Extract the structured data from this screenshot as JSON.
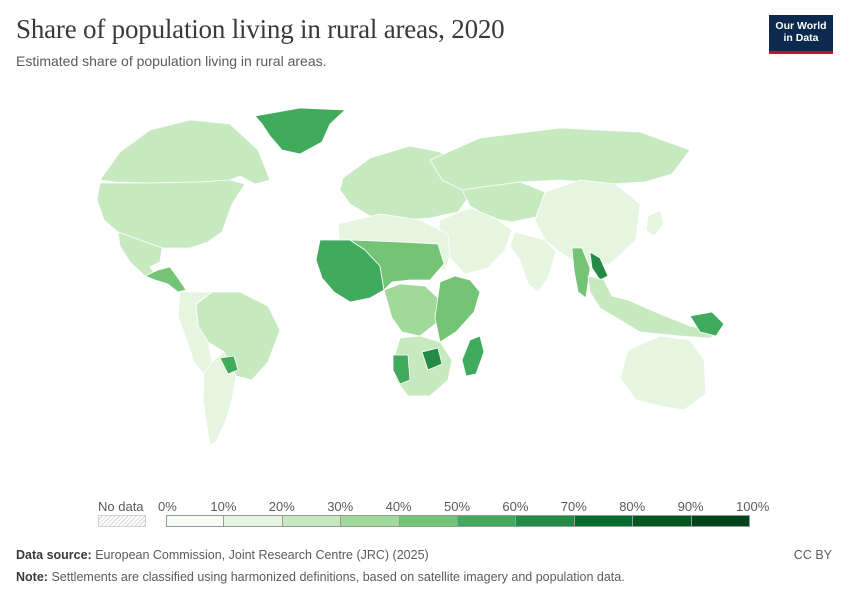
{
  "title": "Share of population living in rural areas, 2020",
  "subtitle": "Estimated share of population living in rural areas.",
  "logo": {
    "line1": "Our World",
    "line2": "in Data"
  },
  "legend": {
    "no_data_label": "No data",
    "ticks": [
      "0%",
      "10%",
      "20%",
      "30%",
      "40%",
      "50%",
      "60%",
      "70%",
      "80%",
      "90%",
      "100%"
    ],
    "colors": [
      "#f7fcf5",
      "#e5f5e0",
      "#c7e9c0",
      "#a1d99b",
      "#74c476",
      "#41ab5d",
      "#238b45",
      "#006d2c",
      "#00571f",
      "#00441b"
    ]
  },
  "footer": {
    "source_label": "Data source:",
    "source_text": "European Commission, Joint Research Centre (JRC) (2025)",
    "note_label": "Note:",
    "note_text": "Settlements are classified using harmonized definitions, based on satellite imagery and population data.",
    "license": "CC BY"
  },
  "chart_data": {
    "type": "choropleth",
    "title": "Share of population living in rural areas, 2020",
    "unit": "%",
    "bins": [
      0,
      10,
      20,
      30,
      40,
      50,
      60,
      70,
      80,
      90,
      100
    ],
    "regions": [
      {
        "name": "Greenland",
        "bin": 5
      },
      {
        "name": "Canada",
        "bin": 2
      },
      {
        "name": "United States",
        "bin": 2
      },
      {
        "name": "Mexico",
        "bin": 2
      },
      {
        "name": "Central America",
        "bin": 4
      },
      {
        "name": "Brazil",
        "bin": 2
      },
      {
        "name": "Andean South America",
        "bin": 1
      },
      {
        "name": "Argentina",
        "bin": 1
      },
      {
        "name": "Paraguay",
        "bin": 5
      },
      {
        "name": "Europe",
        "bin": 2
      },
      {
        "name": "Russia",
        "bin": 2
      },
      {
        "name": "Central Asia",
        "bin": 2
      },
      {
        "name": "China",
        "bin": 1
      },
      {
        "name": "India",
        "bin": 1
      },
      {
        "name": "Middle East",
        "bin": 1
      },
      {
        "name": "North Africa",
        "bin": 1
      },
      {
        "name": "West Africa",
        "bin": 5
      },
      {
        "name": "Sahel",
        "bin": 4
      },
      {
        "name": "Central Africa",
        "bin": 3
      },
      {
        "name": "East Africa",
        "bin": 4
      },
      {
        "name": "Southern Africa",
        "bin": 2
      },
      {
        "name": "Namibia",
        "bin": 5
      },
      {
        "name": "Zimbabwe",
        "bin": 6
      },
      {
        "name": "Madagascar",
        "bin": 5
      },
      {
        "name": "Myanmar",
        "bin": 4
      },
      {
        "name": "Laos",
        "bin": 6
      },
      {
        "name": "Southeast Asia",
        "bin": 2
      },
      {
        "name": "Papua New Guinea",
        "bin": 5
      },
      {
        "name": "Australia",
        "bin": 1
      },
      {
        "name": "Japan",
        "bin": 1
      }
    ]
  }
}
